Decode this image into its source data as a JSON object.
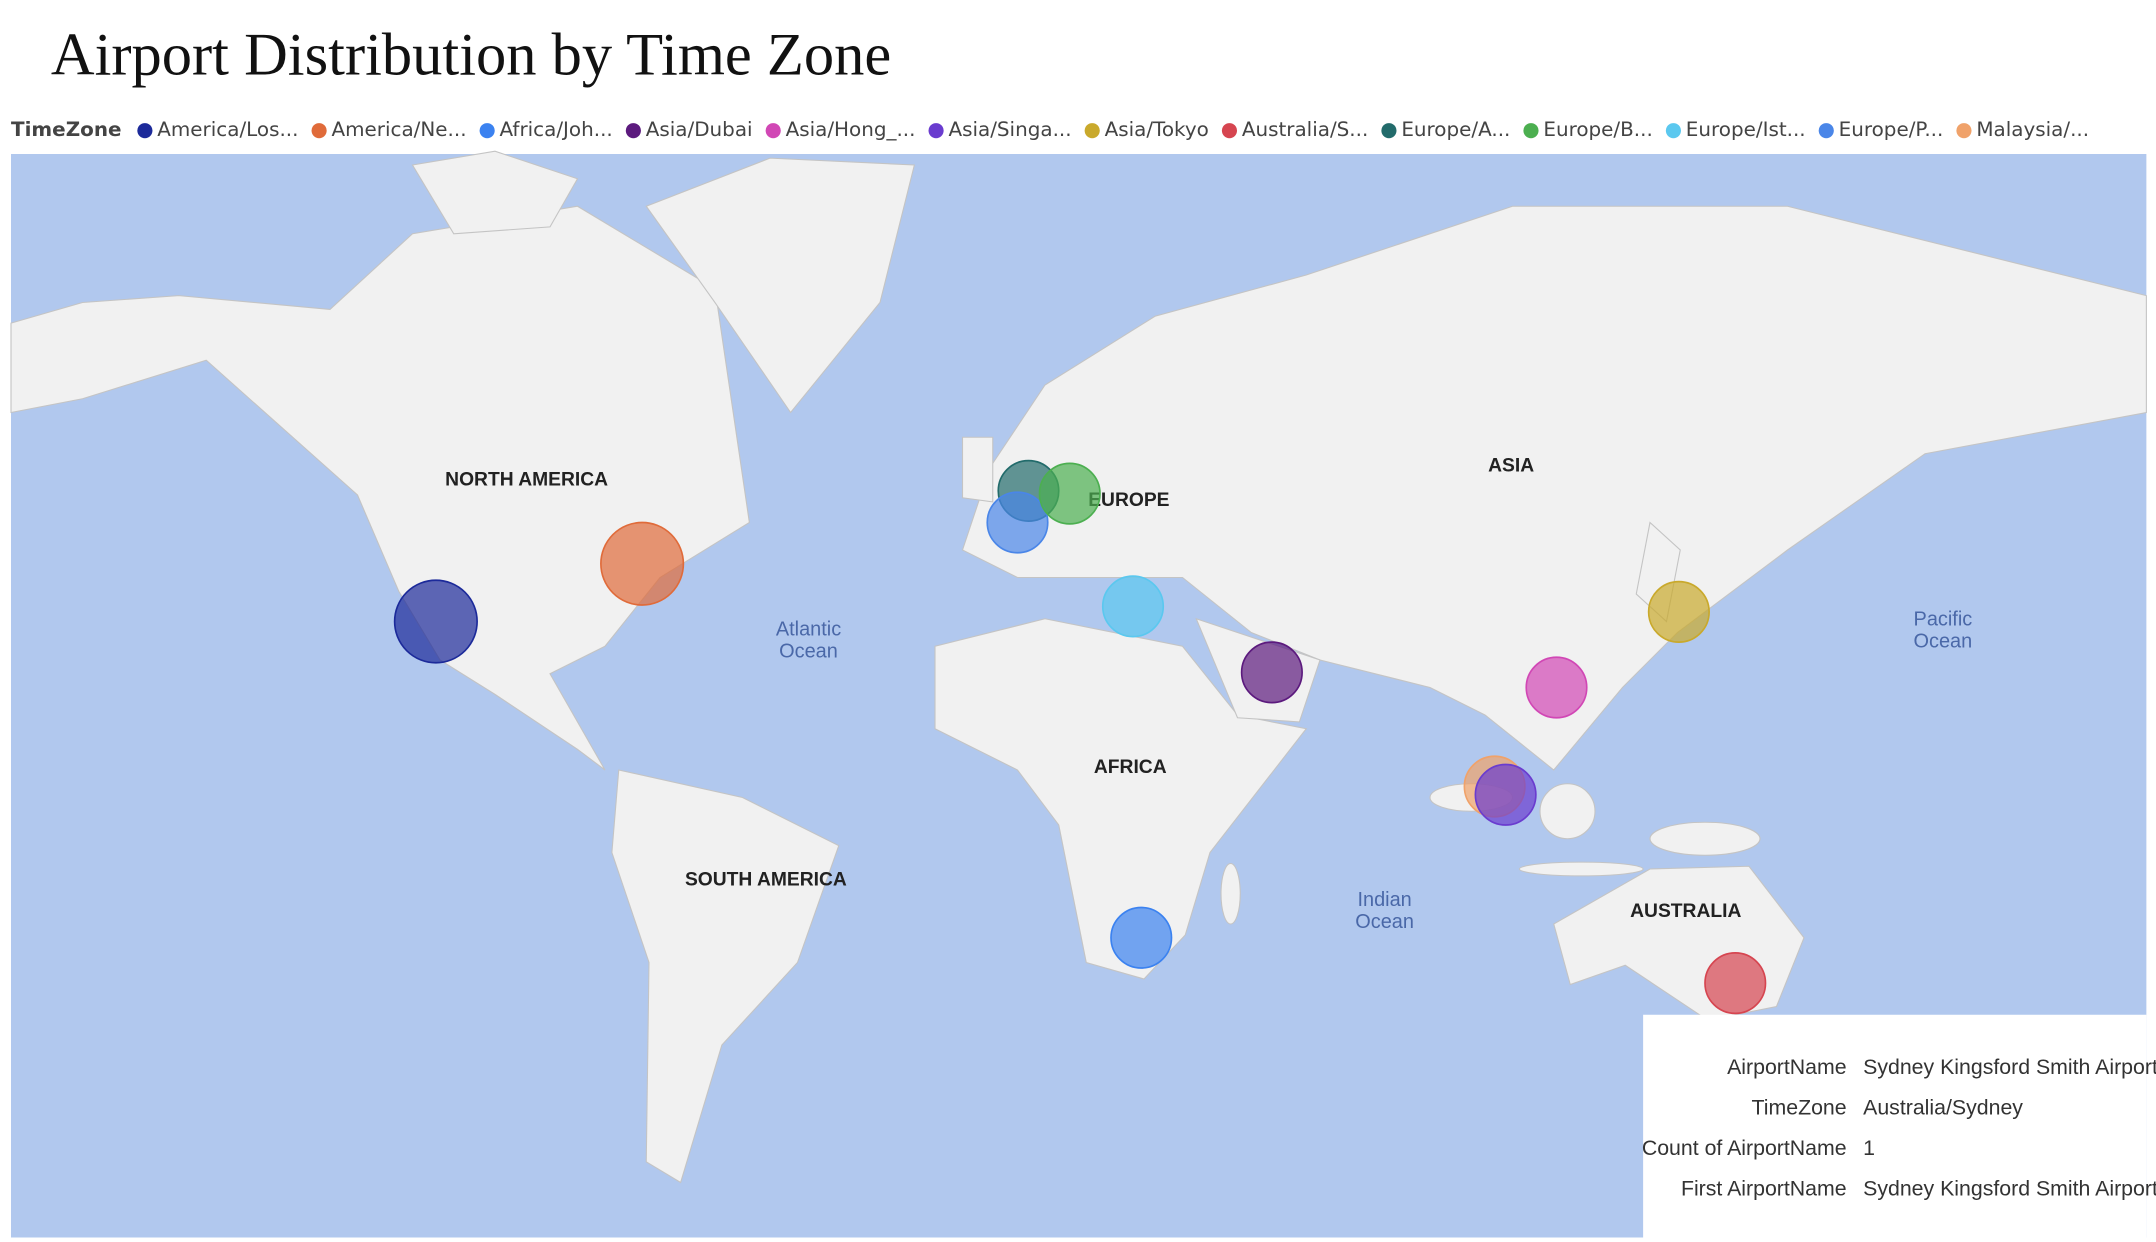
{
  "title": "Airport Distribution by Time Zone",
  "legend": {
    "title": "TimeZone",
    "items": [
      {
        "label": "America/Los...",
        "color": "#1c2a9a"
      },
      {
        "label": "America/Ne...",
        "color": "#e06b3a"
      },
      {
        "label": "Africa/Joh...",
        "color": "#3b82f0"
      },
      {
        "label": "Asia/Dubai",
        "color": "#5c1a7e"
      },
      {
        "label": "Asia/Hong_...",
        "color": "#d147b5"
      },
      {
        "label": "Asia/Singa...",
        "color": "#6a3ccf"
      },
      {
        "label": "Asia/Tokyo",
        "color": "#c9a92c"
      },
      {
        "label": "Australia/S...",
        "color": "#d64550"
      },
      {
        "label": "Europe/A...",
        "color": "#226b6b"
      },
      {
        "label": "Europe/B...",
        "color": "#4caf50"
      },
      {
        "label": "Europe/Ist...",
        "color": "#5bc8ef"
      },
      {
        "label": "Europe/P...",
        "color": "#4a86e8"
      },
      {
        "label": "Malaysia/...",
        "color": "#f0a26a"
      }
    ]
  },
  "map": {
    "continents": [
      "NORTH AMERICA",
      "EUROPE",
      "ASIA",
      "AFRICA",
      "SOUTH AMERICA",
      "AUSTRALIA"
    ],
    "oceans": [
      [
        "Atlantic",
        "Ocean"
      ],
      [
        "Pacific",
        "Ocean"
      ],
      [
        "Indian",
        "Ocean"
      ]
    ]
  },
  "tooltip": {
    "rows": [
      {
        "label": "AirportName",
        "value": "Sydney Kingsford Smith Airport"
      },
      {
        "label": "TimeZone",
        "value": "Australia/Sydney"
      },
      {
        "label": "Count of AirportName",
        "value": 1
      },
      {
        "label": "First AirportName",
        "value": "Sydney Kingsford Smith Airport"
      }
    ]
  }
}
